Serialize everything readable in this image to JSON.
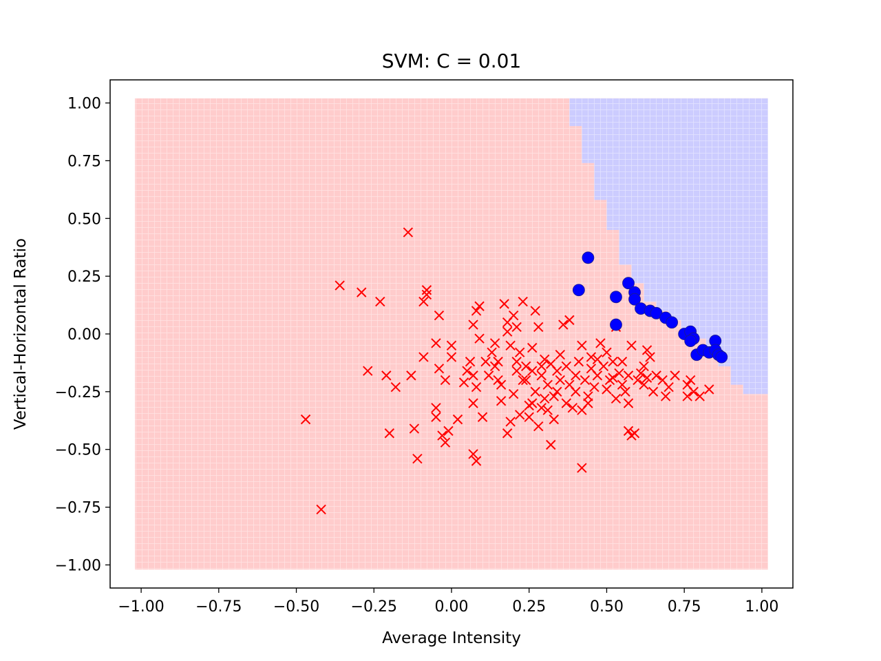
{
  "chart_data": {
    "type": "scatter",
    "title": "SVM: C = 0.01",
    "xlabel": "Average Intensity",
    "ylabel": "Vertical-Horizontal Ratio",
    "xlim": [
      -1.1,
      1.1
    ],
    "ylim": [
      -1.1,
      1.1
    ],
    "x_ticks": [
      -1.0,
      -0.75,
      -0.5,
      -0.25,
      0.0,
      0.25,
      0.5,
      0.75,
      1.0
    ],
    "y_ticks": [
      -1.0,
      -0.75,
      -0.5,
      -0.25,
      0.0,
      0.25,
      0.5,
      0.75,
      1.0
    ],
    "x_tick_labels": [
      "−1.00",
      "−0.75",
      "−0.50",
      "−0.25",
      "0.00",
      "0.25",
      "0.50",
      "0.75",
      "1.00"
    ],
    "y_tick_labels": [
      "−1.00",
      "−0.75",
      "−0.50",
      "−0.25",
      "0.00",
      "0.25",
      "0.50",
      "0.75",
      "1.00"
    ],
    "grid": false,
    "decision_region": {
      "x_range": [
        -1.02,
        1.02
      ],
      "y_range": [
        -1.02,
        1.02
      ],
      "negative_color": "#ff0000",
      "positive_color": "#0000ff",
      "boundary": [
        {
          "x": 0.38,
          "y": 1.02
        },
        {
          "x": 0.38,
          "y": 0.9
        },
        {
          "x": 0.42,
          "y": 0.9
        },
        {
          "x": 0.42,
          "y": 0.74
        },
        {
          "x": 0.46,
          "y": 0.74
        },
        {
          "x": 0.46,
          "y": 0.58
        },
        {
          "x": 0.5,
          "y": 0.58
        },
        {
          "x": 0.5,
          "y": 0.45
        },
        {
          "x": 0.54,
          "y": 0.45
        },
        {
          "x": 0.54,
          "y": 0.3
        },
        {
          "x": 0.58,
          "y": 0.3
        },
        {
          "x": 0.58,
          "y": 0.22
        },
        {
          "x": 0.62,
          "y": 0.22
        },
        {
          "x": 0.62,
          "y": 0.14
        },
        {
          "x": 0.66,
          "y": 0.14
        },
        {
          "x": 0.66,
          "y": 0.1
        },
        {
          "x": 0.7,
          "y": 0.1
        },
        {
          "x": 0.7,
          "y": 0.06
        },
        {
          "x": 0.74,
          "y": 0.06
        },
        {
          "x": 0.74,
          "y": 0.02
        },
        {
          "x": 0.78,
          "y": 0.02
        },
        {
          "x": 0.78,
          "y": -0.02
        },
        {
          "x": 0.82,
          "y": -0.02
        },
        {
          "x": 0.82,
          "y": -0.06
        },
        {
          "x": 0.86,
          "y": -0.06
        },
        {
          "x": 0.86,
          "y": -0.14
        },
        {
          "x": 0.9,
          "y": -0.14
        },
        {
          "x": 0.9,
          "y": -0.22
        },
        {
          "x": 0.94,
          "y": -0.22
        },
        {
          "x": 0.94,
          "y": -0.26
        },
        {
          "x": 1.02,
          "y": -0.26
        }
      ]
    },
    "series": [
      {
        "marker": "x",
        "color": "#ff0000",
        "points": [
          [
            -0.14,
            0.44
          ],
          [
            -0.36,
            0.21
          ],
          [
            -0.29,
            0.18
          ],
          [
            -0.23,
            0.14
          ],
          [
            -0.08,
            0.19
          ],
          [
            -0.08,
            0.17
          ],
          [
            -0.09,
            0.14
          ],
          [
            -0.04,
            0.08
          ],
          [
            -0.47,
            -0.37
          ],
          [
            -0.42,
            -0.76
          ],
          [
            -0.27,
            -0.16
          ],
          [
            -0.21,
            -0.18
          ],
          [
            -0.18,
            -0.23
          ],
          [
            -0.13,
            -0.18
          ],
          [
            -0.2,
            -0.43
          ],
          [
            -0.12,
            -0.41
          ],
          [
            -0.11,
            -0.54
          ],
          [
            -0.09,
            -0.1
          ],
          [
            -0.05,
            -0.04
          ],
          [
            -0.04,
            -0.15
          ],
          [
            -0.05,
            -0.32
          ],
          [
            -0.05,
            -0.36
          ],
          [
            -0.03,
            -0.44
          ],
          [
            -0.02,
            -0.47
          ],
          [
            -0.01,
            -0.42
          ],
          [
            0.0,
            -0.05
          ],
          [
            0.0,
            -0.1
          ],
          [
            -0.02,
            -0.2
          ],
          [
            0.02,
            -0.37
          ],
          [
            0.04,
            -0.21
          ],
          [
            0.06,
            -0.12
          ],
          [
            0.05,
            -0.16
          ],
          [
            0.07,
            -0.18
          ],
          [
            0.07,
            -0.3
          ],
          [
            0.08,
            -0.23
          ],
          [
            0.07,
            -0.52
          ],
          [
            0.08,
            -0.55
          ],
          [
            0.07,
            0.04
          ],
          [
            0.08,
            0.1
          ],
          [
            0.09,
            0.12
          ],
          [
            0.09,
            -0.02
          ],
          [
            0.1,
            -0.36
          ],
          [
            0.11,
            -0.12
          ],
          [
            0.13,
            -0.08
          ],
          [
            0.14,
            -0.14
          ],
          [
            0.15,
            -0.2
          ],
          [
            0.16,
            -0.29
          ],
          [
            0.14,
            -0.04
          ],
          [
            0.16,
            -0.22
          ],
          [
            0.17,
            0.13
          ],
          [
            0.18,
            0.05
          ],
          [
            0.18,
            0.01
          ],
          [
            0.19,
            -0.05
          ],
          [
            0.2,
            0.08
          ],
          [
            0.21,
            0.03
          ],
          [
            0.18,
            -0.43
          ],
          [
            0.19,
            -0.38
          ],
          [
            0.2,
            -0.26
          ],
          [
            0.21,
            -0.12
          ],
          [
            0.22,
            -0.35
          ],
          [
            0.22,
            -0.08
          ],
          [
            0.23,
            0.14
          ],
          [
            0.24,
            -0.14
          ],
          [
            0.24,
            -0.2
          ],
          [
            0.25,
            -0.31
          ],
          [
            0.25,
            -0.36
          ],
          [
            0.26,
            -0.06
          ],
          [
            0.26,
            -0.16
          ],
          [
            0.27,
            -0.25
          ],
          [
            0.27,
            0.1
          ],
          [
            0.28,
            -0.4
          ],
          [
            0.28,
            0.03
          ],
          [
            0.29,
            -0.18
          ],
          [
            0.29,
            -0.32
          ],
          [
            0.3,
            -0.11
          ],
          [
            0.3,
            -0.28
          ],
          [
            0.31,
            -0.33
          ],
          [
            0.31,
            -0.22
          ],
          [
            0.32,
            -0.48
          ],
          [
            0.32,
            -0.13
          ],
          [
            0.33,
            -0.37
          ],
          [
            0.33,
            -0.27
          ],
          [
            0.34,
            -0.16
          ],
          [
            0.35,
            -0.2
          ],
          [
            0.35,
            -0.09
          ],
          [
            0.36,
            0.04
          ],
          [
            0.37,
            -0.3
          ],
          [
            0.37,
            -0.14
          ],
          [
            0.38,
            0.06
          ],
          [
            0.38,
            -0.22
          ],
          [
            0.39,
            -0.32
          ],
          [
            0.4,
            -0.18
          ],
          [
            0.4,
            -0.25
          ],
          [
            0.41,
            -0.12
          ],
          [
            0.42,
            -0.05
          ],
          [
            0.42,
            -0.58
          ],
          [
            0.42,
            -0.33
          ],
          [
            0.43,
            -0.2
          ],
          [
            0.44,
            -0.27
          ],
          [
            0.45,
            -0.15
          ],
          [
            0.45,
            -0.1
          ],
          [
            0.46,
            -0.23
          ],
          [
            0.47,
            -0.18
          ],
          [
            0.48,
            -0.04
          ],
          [
            0.49,
            -0.14
          ],
          [
            0.5,
            -0.24
          ],
          [
            0.5,
            -0.08
          ],
          [
            0.51,
            -0.2
          ],
          [
            0.52,
            -0.12
          ],
          [
            0.53,
            0.03
          ],
          [
            0.53,
            -0.28
          ],
          [
            0.54,
            -0.17
          ],
          [
            0.55,
            -0.12
          ],
          [
            0.55,
            -0.22
          ],
          [
            0.56,
            -0.25
          ],
          [
            0.57,
            -0.42
          ],
          [
            0.57,
            -0.18
          ],
          [
            0.57,
            -0.3
          ],
          [
            0.58,
            -0.44
          ],
          [
            0.58,
            -0.05
          ],
          [
            0.59,
            -0.43
          ],
          [
            0.6,
            -0.2
          ],
          [
            0.61,
            -0.17
          ],
          [
            0.62,
            -0.14
          ],
          [
            0.62,
            -0.22
          ],
          [
            0.63,
            -0.07
          ],
          [
            0.63,
            -0.19
          ],
          [
            0.64,
            -0.1
          ],
          [
            0.65,
            -0.25
          ],
          [
            0.66,
            -0.18
          ],
          [
            0.68,
            -0.2
          ],
          [
            0.69,
            -0.27
          ],
          [
            0.7,
            -0.23
          ],
          [
            0.72,
            -0.18
          ],
          [
            0.76,
            -0.22
          ],
          [
            0.76,
            -0.27
          ],
          [
            0.77,
            -0.2
          ],
          [
            0.78,
            -0.25
          ],
          [
            0.8,
            -0.27
          ],
          [
            0.83,
            -0.24
          ],
          [
            0.44,
            -0.3
          ],
          [
            0.34,
            -0.25
          ],
          [
            0.29,
            -0.14
          ],
          [
            0.26,
            -0.3
          ],
          [
            0.23,
            -0.2
          ],
          [
            0.21,
            -0.16
          ],
          [
            0.15,
            -0.12
          ],
          [
            0.12,
            -0.18
          ],
          [
            0.47,
            -0.11
          ],
          [
            0.52,
            -0.19
          ]
        ]
      },
      {
        "marker": "o",
        "color": "#0000ff",
        "points": [
          [
            0.44,
            0.33
          ],
          [
            0.41,
            0.19
          ],
          [
            0.53,
            0.16
          ],
          [
            0.53,
            0.04
          ],
          [
            0.57,
            0.22
          ],
          [
            0.59,
            0.18
          ],
          [
            0.59,
            0.15
          ],
          [
            0.61,
            0.11
          ],
          [
            0.64,
            0.1
          ],
          [
            0.66,
            0.09
          ],
          [
            0.69,
            0.07
          ],
          [
            0.71,
            0.05
          ],
          [
            0.75,
            0.0
          ],
          [
            0.77,
            0.01
          ],
          [
            0.78,
            -0.02
          ],
          [
            0.77,
            -0.03
          ],
          [
            0.79,
            -0.09
          ],
          [
            0.81,
            -0.07
          ],
          [
            0.83,
            -0.08
          ],
          [
            0.85,
            -0.03
          ],
          [
            0.85,
            -0.07
          ],
          [
            0.86,
            -0.09
          ],
          [
            0.87,
            -0.1
          ]
        ]
      }
    ]
  }
}
